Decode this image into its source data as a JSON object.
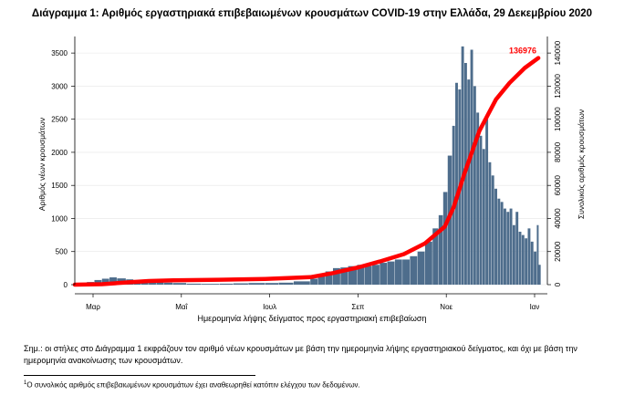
{
  "title": "Διάγραμμα 1: Αριθμός εργαστηριακά επιβεβαιωμένων κρουσμάτων COVID-19 στην Ελλάδα, 29 Δεκεμβρίου 2020",
  "xlabel": "Ημερομηνία λήψης δείγματος προς εργαστηριακή επιβεβαίωση",
  "note": "Σημ.: οι στήλες στο Διάγραμμα 1 εκφράζουν τον αριθμό νέων κρουσμάτων με βάση την ημερομηνία λήψης εργαστηριακού δείγματος, και όχι με βάση την ημερομηνία ανακοίνωσης των κρουσμάτων.",
  "footnote_mark": "1",
  "footnote": "Ο συνολικός αριθμός επιβεβαιωμένων κρουσμάτων έχει αναθεωρηθεί κατόπιν ελέγχου των δεδομένων.",
  "chart_data": {
    "type": "bar",
    "ylabel_left": "Αριθμός νέων κρουσμάτων",
    "ylabel_right": "Συνολικός αριθμός κρουσμάτων",
    "y_left_ticks": [
      0,
      500,
      1000,
      1500,
      2000,
      2500,
      3000,
      3500
    ],
    "y_left_range": [
      0,
      3750
    ],
    "y_right_ticks": [
      0,
      20000,
      40000,
      60000,
      80000,
      100000,
      120000,
      140000
    ],
    "y_right_range": [
      0,
      150000
    ],
    "x_ticks": [
      "Μαρ",
      "Μαΐ",
      "Ιουλ",
      "Σεπ",
      "Νοε",
      "Ιαν"
    ],
    "x_range": [
      "2020-02-26",
      "2021-01-04"
    ],
    "bar_color": "#4e6d8c",
    "line_color": "#ff0000",
    "series": [
      {
        "name": "Νέα κρούσματα",
        "kind": "bar",
        "points": [
          [
            "2020-02-26",
            5
          ],
          [
            "2020-03-01",
            15
          ],
          [
            "2020-03-05",
            40
          ],
          [
            "2020-03-10",
            70
          ],
          [
            "2020-03-15",
            90
          ],
          [
            "2020-03-20",
            110
          ],
          [
            "2020-03-25",
            95
          ],
          [
            "2020-03-31",
            80
          ],
          [
            "2020-04-05",
            70
          ],
          [
            "2020-04-10",
            60
          ],
          [
            "2020-04-15",
            55
          ],
          [
            "2020-04-20",
            45
          ],
          [
            "2020-04-25",
            30
          ],
          [
            "2020-05-01",
            25
          ],
          [
            "2020-05-10",
            15
          ],
          [
            "2020-05-20",
            12
          ],
          [
            "2020-06-01",
            15
          ],
          [
            "2020-06-10",
            20
          ],
          [
            "2020-06-20",
            25
          ],
          [
            "2020-07-01",
            25
          ],
          [
            "2020-07-10",
            30
          ],
          [
            "2020-07-20",
            50
          ],
          [
            "2020-07-31",
            90
          ],
          [
            "2020-08-05",
            140
          ],
          [
            "2020-08-10",
            200
          ],
          [
            "2020-08-15",
            250
          ],
          [
            "2020-08-20",
            260
          ],
          [
            "2020-08-25",
            280
          ],
          [
            "2020-08-31",
            300
          ],
          [
            "2020-09-05",
            280
          ],
          [
            "2020-09-10",
            300
          ],
          [
            "2020-09-15",
            330
          ],
          [
            "2020-09-20",
            350
          ],
          [
            "2020-09-25",
            380
          ],
          [
            "2020-09-30",
            380
          ],
          [
            "2020-10-05",
            430
          ],
          [
            "2020-10-10",
            500
          ],
          [
            "2020-10-15",
            650
          ],
          [
            "2020-10-20",
            850
          ],
          [
            "2020-10-24",
            1050
          ],
          [
            "2020-10-27",
            1400
          ],
          [
            "2020-10-30",
            1950
          ],
          [
            "2020-11-02",
            2400
          ],
          [
            "2020-11-04",
            3050
          ],
          [
            "2020-11-06",
            2950
          ],
          [
            "2020-11-08",
            3600
          ],
          [
            "2020-11-10",
            3350
          ],
          [
            "2020-11-12",
            3100
          ],
          [
            "2020-11-14",
            3550
          ],
          [
            "2020-11-16",
            3000
          ],
          [
            "2020-11-18",
            2600
          ],
          [
            "2020-11-20",
            2250
          ],
          [
            "2020-11-22",
            2050
          ],
          [
            "2020-11-24",
            2500
          ],
          [
            "2020-11-26",
            1850
          ],
          [
            "2020-11-28",
            1650
          ],
          [
            "2020-11-30",
            1450
          ],
          [
            "2020-12-02",
            1300
          ],
          [
            "2020-12-04",
            1250
          ],
          [
            "2020-12-06",
            1150
          ],
          [
            "2020-12-08",
            1100
          ],
          [
            "2020-12-10",
            1150
          ],
          [
            "2020-12-12",
            900
          ],
          [
            "2020-12-14",
            1100
          ],
          [
            "2020-12-16",
            800
          ],
          [
            "2020-12-18",
            750
          ],
          [
            "2020-12-20",
            700
          ],
          [
            "2020-12-22",
            850
          ],
          [
            "2020-12-24",
            650
          ],
          [
            "2020-12-26",
            500
          ],
          [
            "2020-12-28",
            900
          ],
          [
            "2020-12-29",
            300
          ]
        ]
      },
      {
        "name": "Συνολικός αριθμός κρουσμάτων",
        "kind": "line",
        "points": [
          [
            "2020-02-26",
            3
          ],
          [
            "2020-03-15",
            300
          ],
          [
            "2020-04-01",
            1400
          ],
          [
            "2020-04-15",
            2200
          ],
          [
            "2020-05-01",
            2600
          ],
          [
            "2020-06-01",
            3000
          ],
          [
            "2020-07-01",
            3500
          ],
          [
            "2020-07-31",
            4500
          ],
          [
            "2020-08-15",
            7000
          ],
          [
            "2020-09-01",
            10500
          ],
          [
            "2020-09-15",
            14000
          ],
          [
            "2020-10-01",
            18500
          ],
          [
            "2020-10-15",
            25000
          ],
          [
            "2020-10-28",
            35000
          ],
          [
            "2020-11-03",
            47000
          ],
          [
            "2020-11-10",
            67000
          ],
          [
            "2020-11-20",
            93000
          ],
          [
            "2020-12-01",
            112000
          ],
          [
            "2020-12-10",
            122000
          ],
          [
            "2020-12-20",
            131000
          ],
          [
            "2020-12-29",
            136976
          ]
        ]
      }
    ],
    "annotations": [
      {
        "text": "136976",
        "date": "2020-12-29",
        "value": 136976
      }
    ]
  }
}
